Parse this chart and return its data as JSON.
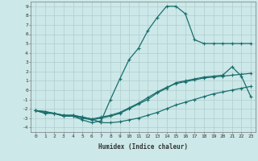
{
  "xlabel": "Humidex (Indice chaleur)",
  "xlim": [
    -0.5,
    23.5
  ],
  "ylim": [
    -4.5,
    9.5
  ],
  "xticks": [
    0,
    1,
    2,
    3,
    4,
    5,
    6,
    7,
    8,
    9,
    10,
    11,
    12,
    13,
    14,
    15,
    16,
    17,
    18,
    19,
    20,
    21,
    22,
    23
  ],
  "yticks": [
    -4,
    -3,
    -2,
    -1,
    0,
    1,
    2,
    3,
    4,
    5,
    6,
    7,
    8,
    9
  ],
  "background_color": "#cce8e8",
  "grid_color": "#b0cccc",
  "line_color": "#1a6e6e",
  "lines": [
    {
      "x": [
        0,
        1,
        2,
        3,
        4,
        5,
        6,
        7,
        8,
        9,
        10,
        11,
        12,
        13,
        14,
        15,
        16,
        17,
        18,
        19,
        20,
        21,
        22,
        23
      ],
      "y": [
        -2.2,
        -2.5,
        -2.5,
        -2.8,
        -2.8,
        -3.2,
        -3.5,
        -3.3,
        -1.0,
        1.2,
        3.3,
        4.5,
        6.4,
        7.8,
        9.0,
        9.0,
        8.2,
        5.4,
        5.0,
        5.0,
        5.0,
        5.0,
        5.0,
        5.0
      ]
    },
    {
      "x": [
        0,
        1,
        2,
        3,
        4,
        5,
        6,
        7,
        8,
        9,
        10,
        11,
        12,
        13,
        14,
        15,
        16,
        17,
        18,
        19,
        20,
        21,
        22,
        23
      ],
      "y": [
        -2.2,
        -2.4,
        -2.5,
        -2.8,
        -2.8,
        -3.0,
        -3.2,
        -3.0,
        -2.8,
        -2.5,
        -2.0,
        -1.5,
        -1.0,
        -0.3,
        0.2,
        0.8,
        1.0,
        1.2,
        1.4,
        1.5,
        1.6,
        2.5,
        1.5,
        -0.7
      ]
    },
    {
      "x": [
        0,
        1,
        2,
        3,
        4,
        5,
        6,
        7,
        8,
        9,
        10,
        11,
        12,
        13,
        14,
        15,
        16,
        17,
        18,
        19,
        20,
        21,
        22,
        23
      ],
      "y": [
        -2.2,
        -2.3,
        -2.5,
        -2.7,
        -2.7,
        -2.9,
        -3.1,
        -2.9,
        -2.7,
        -2.4,
        -1.9,
        -1.4,
        -0.8,
        -0.2,
        0.3,
        0.7,
        0.9,
        1.1,
        1.3,
        1.4,
        1.5,
        1.6,
        1.7,
        1.8
      ]
    },
    {
      "x": [
        0,
        1,
        2,
        3,
        4,
        5,
        6,
        7,
        8,
        9,
        10,
        11,
        12,
        13,
        14,
        15,
        16,
        17,
        18,
        19,
        20,
        21,
        22,
        23
      ],
      "y": [
        -2.2,
        -2.3,
        -2.5,
        -2.7,
        -2.7,
        -2.9,
        -3.1,
        -3.5,
        -3.5,
        -3.4,
        -3.2,
        -3.0,
        -2.7,
        -2.4,
        -2.0,
        -1.6,
        -1.3,
        -1.0,
        -0.7,
        -0.4,
        -0.2,
        0.0,
        0.2,
        0.4
      ]
    }
  ]
}
